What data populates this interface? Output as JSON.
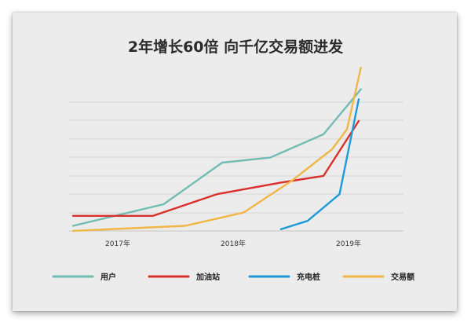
{
  "chart_data": {
    "type": "line",
    "title": "2年增长60倍  向千亿交易额进发",
    "xlabel": "",
    "ylabel": "",
    "x_ticks": [
      "2017年",
      "2018年",
      "2019年"
    ],
    "xlim": [
      2016.65,
      2019.75
    ],
    "ylim": [
      0,
      100
    ],
    "grid": true,
    "legend_position": "bottom",
    "series": [
      {
        "name": "用户",
        "color": "#72bcb4",
        "x": [
          2016.65,
          2017.5,
          2018.05,
          2018.5,
          2019.0,
          2019.35
        ],
        "y": [
          4,
          17,
          42,
          45,
          59,
          86
        ]
      },
      {
        "name": "加油站",
        "color": "#d9302b",
        "x": [
          2016.65,
          2017.4,
          2018.0,
          2018.6,
          2019.0,
          2019.33
        ],
        "y": [
          10,
          10,
          23,
          30,
          34,
          67
        ]
      },
      {
        "name": "充电桩",
        "color": "#1e9ad6",
        "x": [
          2018.6,
          2018.85,
          2019.15,
          2019.33
        ],
        "y": [
          2,
          7,
          23,
          80
        ]
      },
      {
        "name": "交易额",
        "color": "#f0b747",
        "x": [
          2016.65,
          2017.7,
          2018.25,
          2018.7,
          2019.08,
          2019.22,
          2019.35
        ],
        "y": [
          1,
          4,
          12,
          31,
          50,
          62,
          99
        ]
      }
    ]
  }
}
